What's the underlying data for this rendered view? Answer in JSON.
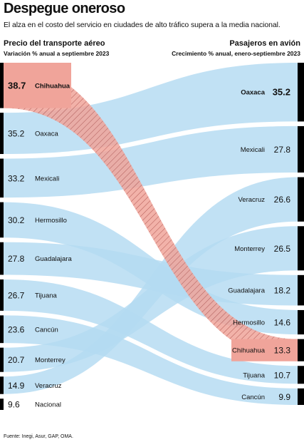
{
  "header": {
    "title": "Despegue oneroso",
    "subtitle": "El alza en el costo del servicio en ciudades de alto tráfico supera a la media nacional."
  },
  "left_header": {
    "title": "Precio del transporte aéreo",
    "subtitle": "Variación % anual a septiembre 2023"
  },
  "right_header": {
    "title": "Pasajeros en avión",
    "subtitle": "Crecimiento % anual, enero-septiembre 2023"
  },
  "source": "Fuente: Inegi, Asur, GAP, OMA.",
  "colors": {
    "band": "#b3daf2",
    "highlight": "#f0a49a",
    "hatch": "#a8403a",
    "bar": "#000000",
    "highlight_label_bg": "#f0a49a"
  },
  "chart_data": {
    "type": "slope",
    "left": [
      {
        "city": "Chihuahua",
        "value": 38.7
      },
      {
        "city": "Oaxaca",
        "value": 35.2
      },
      {
        "city": "Mexicali",
        "value": 33.2
      },
      {
        "city": "Hermosillo",
        "value": 30.2
      },
      {
        "city": "Guadalajara",
        "value": 27.8
      },
      {
        "city": "Tijuana",
        "value": 26.7
      },
      {
        "city": "Cancún",
        "value": 23.6
      },
      {
        "city": "Monterrey",
        "value": 20.7
      },
      {
        "city": "Veracruz",
        "value": 14.9
      },
      {
        "city": "Nacional",
        "value": 9.6
      }
    ],
    "right": [
      {
        "city": "Oaxaca",
        "value": 35.2
      },
      {
        "city": "Mexicali",
        "value": 27.8
      },
      {
        "city": "Veracruz",
        "value": 26.6
      },
      {
        "city": "Monterrey",
        "value": 26.5
      },
      {
        "city": "Guadalajara",
        "value": 18.2
      },
      {
        "city": "Hermosillo",
        "value": 14.6
      },
      {
        "city": "Chihuahua",
        "value": 13.3
      },
      {
        "city": "Tijuana",
        "value": 10.7
      },
      {
        "city": "Cancún",
        "value": 9.9
      }
    ],
    "highlight_city": "Chihuahua",
    "top_city": "Oaxaca"
  }
}
